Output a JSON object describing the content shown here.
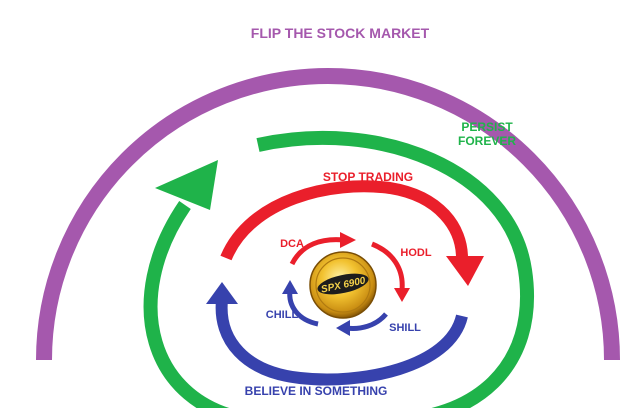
{
  "diagram": {
    "title": "FLIP THE STOCK MARKET",
    "rings": {
      "outer": {
        "color": "#a558ad"
      },
      "green": {
        "label_line1": "PERSIST",
        "label_line2": "FOREVER",
        "color": "#1fb34a"
      },
      "red": {
        "label": "STOP TRADING",
        "color": "#ea1f2b"
      },
      "blue": {
        "label": "BELIEVE IN SOMETHING",
        "color": "#3742ad"
      }
    },
    "inner_cycle": {
      "dca": "DCA",
      "hodl": "HODL",
      "shill": "SHILL",
      "chill": "CHILL"
    },
    "logo": {
      "text": "SPX 6900",
      "icon": "spx6900-coin-logo"
    }
  }
}
